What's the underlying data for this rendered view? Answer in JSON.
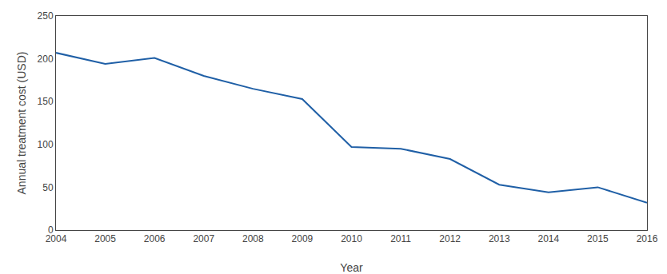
{
  "chart_data": {
    "type": "line",
    "x": [
      2004,
      2005,
      2006,
      2007,
      2008,
      2009,
      2010,
      2011,
      2012,
      2013,
      2014,
      2015,
      2016
    ],
    "values": [
      207,
      194,
      201,
      180,
      165,
      153,
      97,
      95,
      83,
      53,
      44,
      50,
      32
    ],
    "color": "#1f5fa6",
    "xlabel": "Year",
    "ylabel": "Annual treatment cost (USD)",
    "xlim": [
      2004,
      2016
    ],
    "xticks": [
      2004,
      2005,
      2006,
      2007,
      2008,
      2009,
      2010,
      2011,
      2012,
      2013,
      2014,
      2015,
      2016
    ],
    "ylim": [
      0,
      250
    ],
    "yticks": [
      0,
      50,
      100,
      150,
      200,
      250
    ],
    "grid": false
  }
}
